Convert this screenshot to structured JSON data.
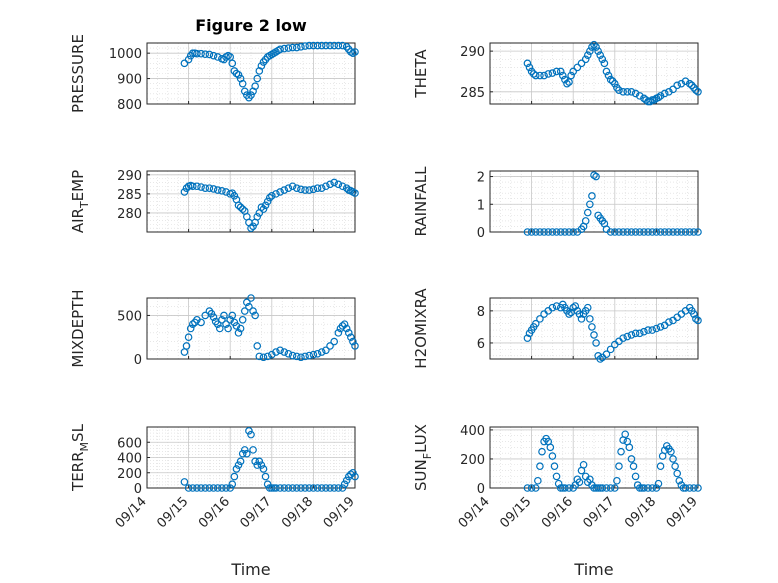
{
  "figure": {
    "title": "Figure 2 low",
    "xlabel": "Time",
    "marker_color": "#0072BD",
    "xlim": [
      "09/14",
      "09/19"
    ],
    "xtick_labels": [
      "09/14",
      "09/15",
      "09/16",
      "09/17",
      "09/18",
      "09/19"
    ]
  },
  "chart_data": [
    {
      "type": "scatter",
      "ylabel": "PRESSURE",
      "ylim": [
        800,
        1040
      ],
      "yticks": [
        800,
        900,
        1000
      ],
      "x_day": [
        14.9,
        15.0,
        15.05,
        15.1,
        15.15,
        15.2,
        15.3,
        15.4,
        15.5,
        15.6,
        15.7,
        15.8,
        15.85,
        15.9,
        15.95,
        16.0,
        16.05,
        16.1,
        16.15,
        16.2,
        16.25,
        16.3,
        16.35,
        16.4,
        16.45,
        16.5,
        16.55,
        16.6,
        16.65,
        16.7,
        16.75,
        16.8,
        16.85,
        16.9,
        16.95,
        17.0,
        17.05,
        17.1,
        17.15,
        17.2,
        17.3,
        17.4,
        17.5,
        17.6,
        17.7,
        17.8,
        17.9,
        18.0,
        18.1,
        18.2,
        18.3,
        18.4,
        18.5,
        18.6,
        18.7,
        18.8,
        18.85,
        18.9,
        18.95,
        19.0
      ],
      "y": [
        960,
        975,
        990,
        1000,
        1000,
        998,
        998,
        996,
        995,
        990,
        985,
        978,
        975,
        985,
        990,
        985,
        960,
        930,
        920,
        915,
        900,
        880,
        850,
        835,
        825,
        835,
        850,
        870,
        900,
        930,
        950,
        965,
        975,
        985,
        990,
        995,
        1000,
        1005,
        1010,
        1015,
        1018,
        1020,
        1022,
        1022,
        1025,
        1028,
        1030,
        1030,
        1030,
        1030,
        1030,
        1030,
        1030,
        1030,
        1030,
        1025,
        1015,
        1005,
        1000,
        1005
      ]
    },
    {
      "type": "scatter",
      "ylabel": "THETA",
      "ylim": [
        283.5,
        291
      ],
      "yticks": [
        285,
        290
      ],
      "x_day": [
        14.9,
        14.95,
        15.0,
        15.05,
        15.1,
        15.2,
        15.3,
        15.4,
        15.5,
        15.6,
        15.7,
        15.75,
        15.8,
        15.85,
        15.9,
        15.95,
        16.0,
        16.1,
        16.2,
        16.3,
        16.35,
        16.4,
        16.45,
        16.5,
        16.55,
        16.6,
        16.65,
        16.7,
        16.75,
        16.8,
        16.85,
        16.9,
        16.95,
        17.0,
        17.05,
        17.1,
        17.2,
        17.3,
        17.4,
        17.5,
        17.6,
        17.7,
        17.75,
        17.8,
        17.85,
        17.9,
        17.95,
        18.0,
        18.05,
        18.1,
        18.2,
        18.3,
        18.4,
        18.5,
        18.6,
        18.7,
        18.8,
        18.85,
        18.9,
        18.95,
        19.0
      ],
      "y": [
        288.5,
        288.0,
        287.5,
        287.2,
        287.0,
        287.0,
        287.0,
        287.2,
        287.3,
        287.5,
        287.5,
        287.0,
        286.5,
        286.0,
        286.2,
        287.0,
        287.5,
        288.0,
        288.5,
        289.0,
        289.5,
        290.0,
        290.5,
        290.8,
        290.5,
        290.0,
        289.5,
        289.0,
        288.5,
        287.5,
        287.0,
        286.5,
        286.3,
        286.0,
        285.5,
        285.2,
        285.0,
        285.0,
        285.0,
        284.8,
        284.5,
        284.2,
        284.0,
        283.8,
        283.8,
        284.0,
        284.0,
        284.2,
        284.3,
        284.5,
        284.8,
        285.0,
        285.3,
        285.8,
        286.0,
        286.3,
        286.0,
        285.8,
        285.5,
        285.2,
        285.0
      ]
    },
    {
      "type": "scatter",
      "ylabel": "AIR_TEMP",
      "ylim": [
        275,
        291
      ],
      "yticks": [
        280,
        285,
        290
      ],
      "x_day": [
        14.9,
        14.95,
        15.0,
        15.05,
        15.1,
        15.2,
        15.3,
        15.4,
        15.5,
        15.6,
        15.7,
        15.8,
        15.9,
        16.0,
        16.05,
        16.1,
        16.15,
        16.2,
        16.25,
        16.3,
        16.35,
        16.4,
        16.45,
        16.5,
        16.55,
        16.6,
        16.65,
        16.7,
        16.75,
        16.8,
        16.85,
        16.9,
        16.95,
        17.0,
        17.1,
        17.2,
        17.3,
        17.4,
        17.5,
        17.6,
        17.7,
        17.8,
        17.9,
        18.0,
        18.1,
        18.2,
        18.3,
        18.4,
        18.5,
        18.6,
        18.7,
        18.8,
        18.85,
        18.9,
        18.95,
        19.0
      ],
      "y": [
        285.5,
        286.5,
        287.0,
        287.2,
        287.0,
        287.0,
        286.8,
        286.5,
        286.5,
        286.3,
        286.0,
        285.8,
        285.5,
        285.0,
        285.2,
        284.5,
        283.5,
        282.0,
        281.5,
        281.0,
        280.5,
        279.0,
        277.5,
        276.0,
        276.5,
        277.5,
        279.0,
        280.0,
        281.5,
        281.0,
        282.0,
        283.0,
        284.0,
        284.5,
        285.0,
        285.5,
        286.0,
        286.5,
        287.0,
        286.5,
        286.2,
        286.0,
        286.0,
        286.2,
        286.5,
        286.5,
        287.0,
        287.5,
        288.0,
        287.5,
        287.0,
        286.5,
        286.0,
        285.8,
        285.5,
        285.2
      ]
    },
    {
      "type": "scatter",
      "ylabel": "RAINFALL",
      "ylim": [
        0,
        2.2
      ],
      "yticks": [
        0,
        1,
        2
      ],
      "x_day": [
        14.9,
        15.0,
        15.1,
        15.2,
        15.3,
        15.4,
        15.5,
        15.6,
        15.7,
        15.8,
        15.9,
        16.0,
        16.1,
        16.2,
        16.25,
        16.3,
        16.35,
        16.4,
        16.45,
        16.5,
        16.55,
        16.6,
        16.65,
        16.7,
        16.75,
        16.8,
        16.9,
        17.0,
        17.1,
        17.2,
        17.3,
        17.4,
        17.5,
        17.6,
        17.7,
        17.8,
        17.9,
        18.0,
        18.1,
        18.2,
        18.3,
        18.4,
        18.5,
        18.6,
        18.7,
        18.8,
        18.9,
        19.0
      ],
      "y": [
        0,
        0,
        0,
        0,
        0,
        0,
        0,
        0,
        0,
        0,
        0,
        0,
        0,
        0.1,
        0.2,
        0.4,
        0.7,
        1.0,
        1.3,
        2.05,
        2.0,
        0.6,
        0.5,
        0.4,
        0.3,
        0.1,
        0,
        0,
        0,
        0,
        0,
        0,
        0,
        0,
        0,
        0,
        0,
        0,
        0,
        0,
        0,
        0,
        0,
        0,
        0,
        0,
        0,
        0
      ]
    },
    {
      "type": "scatter",
      "ylabel": "MIXDEPTH",
      "ylim": [
        0,
        700
      ],
      "yticks": [
        0,
        500
      ],
      "x_day": [
        14.9,
        14.95,
        15.0,
        15.05,
        15.1,
        15.15,
        15.2,
        15.3,
        15.4,
        15.5,
        15.55,
        15.6,
        15.65,
        15.7,
        15.75,
        15.8,
        15.85,
        15.9,
        15.95,
        16.0,
        16.05,
        16.1,
        16.15,
        16.2,
        16.25,
        16.3,
        16.35,
        16.4,
        16.45,
        16.5,
        16.55,
        16.6,
        16.65,
        16.7,
        16.8,
        16.9,
        17.0,
        17.1,
        17.2,
        17.3,
        17.4,
        17.5,
        17.6,
        17.7,
        17.8,
        17.9,
        18.0,
        18.1,
        18.2,
        18.3,
        18.4,
        18.5,
        18.6,
        18.65,
        18.7,
        18.75,
        18.8,
        18.85,
        18.9,
        18.95,
        19.0
      ],
      "y": [
        80,
        150,
        250,
        350,
        400,
        420,
        450,
        420,
        500,
        550,
        520,
        480,
        430,
        400,
        350,
        450,
        500,
        400,
        350,
        450,
        500,
        420,
        380,
        300,
        350,
        450,
        550,
        650,
        600,
        700,
        550,
        500,
        150,
        30,
        20,
        30,
        50,
        80,
        100,
        80,
        60,
        40,
        30,
        20,
        30,
        40,
        50,
        60,
        80,
        100,
        150,
        200,
        300,
        350,
        380,
        400,
        350,
        300,
        250,
        200,
        150
      ]
    },
    {
      "type": "scatter",
      "ylabel": "H2OMIXRA",
      "ylim": [
        5,
        8.8
      ],
      "yticks": [
        6,
        8
      ],
      "x_day": [
        14.9,
        14.95,
        15.0,
        15.05,
        15.1,
        15.2,
        15.3,
        15.4,
        15.5,
        15.6,
        15.7,
        15.75,
        15.8,
        15.85,
        15.9,
        15.95,
        16.0,
        16.05,
        16.1,
        16.15,
        16.2,
        16.25,
        16.3,
        16.35,
        16.4,
        16.45,
        16.5,
        16.55,
        16.6,
        16.65,
        16.7,
        16.8,
        16.9,
        17.0,
        17.1,
        17.2,
        17.3,
        17.4,
        17.5,
        17.6,
        17.7,
        17.8,
        17.9,
        18.0,
        18.1,
        18.2,
        18.3,
        18.4,
        18.5,
        18.6,
        18.7,
        18.8,
        18.85,
        18.9,
        18.95,
        19.0
      ],
      "y": [
        6.3,
        6.6,
        6.8,
        7.0,
        7.2,
        7.5,
        7.8,
        8.0,
        8.2,
        8.3,
        8.2,
        8.4,
        8.2,
        8.0,
        7.8,
        7.9,
        8.2,
        8.3,
        8.0,
        7.8,
        7.5,
        7.8,
        8.0,
        8.2,
        7.5,
        7.0,
        6.5,
        6.0,
        5.2,
        5.0,
        5.1,
        5.3,
        5.6,
        5.9,
        6.1,
        6.3,
        6.4,
        6.5,
        6.6,
        6.6,
        6.7,
        6.8,
        6.8,
        6.9,
        7.0,
        7.1,
        7.3,
        7.4,
        7.6,
        7.8,
        8.0,
        8.2,
        8.0,
        7.8,
        7.5,
        7.4
      ]
    },
    {
      "type": "scatter",
      "ylabel": "TERR_MSL",
      "ylim": [
        0,
        800
      ],
      "yticks": [
        0,
        200,
        400,
        600
      ],
      "x_day": [
        14.9,
        15.0,
        15.1,
        15.2,
        15.3,
        15.4,
        15.5,
        15.6,
        15.7,
        15.8,
        15.9,
        16.0,
        16.05,
        16.1,
        16.15,
        16.2,
        16.25,
        16.3,
        16.35,
        16.4,
        16.45,
        16.5,
        16.55,
        16.6,
        16.65,
        16.7,
        16.75,
        16.8,
        16.85,
        16.9,
        16.95,
        17.0,
        17.05,
        17.1,
        17.2,
        17.3,
        17.4,
        17.5,
        17.6,
        17.7,
        17.8,
        17.9,
        18.0,
        18.1,
        18.2,
        18.3,
        18.4,
        18.5,
        18.6,
        18.7,
        18.75,
        18.8,
        18.85,
        18.9,
        18.95,
        19.0
      ],
      "y": [
        80,
        0,
        0,
        0,
        0,
        0,
        0,
        0,
        0,
        0,
        0,
        0,
        50,
        150,
        250,
        300,
        350,
        450,
        500,
        450,
        750,
        700,
        500,
        350,
        300,
        350,
        300,
        250,
        150,
        50,
        0,
        0,
        0,
        0,
        0,
        0,
        0,
        0,
        0,
        0,
        0,
        0,
        0,
        0,
        0,
        0,
        0,
        0,
        0,
        0,
        50,
        100,
        150,
        180,
        200,
        150
      ]
    },
    {
      "type": "scatter",
      "ylabel": "SUN_FLUX",
      "ylim": [
        0,
        420
      ],
      "yticks": [
        0,
        200,
        400
      ],
      "x_day": [
        14.9,
        15.0,
        15.1,
        15.15,
        15.2,
        15.25,
        15.3,
        15.35,
        15.4,
        15.45,
        15.5,
        15.55,
        15.6,
        15.65,
        15.7,
        15.75,
        15.8,
        15.9,
        16.0,
        16.05,
        16.1,
        16.15,
        16.2,
        16.25,
        16.3,
        16.35,
        16.4,
        16.45,
        16.5,
        16.55,
        16.6,
        16.65,
        16.7,
        16.8,
        16.9,
        17.0,
        17.05,
        17.1,
        17.15,
        17.2,
        17.25,
        17.3,
        17.35,
        17.4,
        17.45,
        17.5,
        17.55,
        17.6,
        17.65,
        17.7,
        17.8,
        17.9,
        18.0,
        18.05,
        18.1,
        18.15,
        18.2,
        18.25,
        18.3,
        18.35,
        18.4,
        18.45,
        18.5,
        18.55,
        18.6,
        18.65,
        18.7,
        18.8,
        18.9,
        19.0
      ],
      "y": [
        0,
        0,
        0,
        50,
        150,
        250,
        320,
        340,
        320,
        280,
        220,
        150,
        80,
        30,
        0,
        0,
        0,
        0,
        0,
        20,
        60,
        40,
        120,
        160,
        80,
        40,
        60,
        20,
        0,
        0,
        0,
        0,
        0,
        0,
        0,
        0,
        50,
        150,
        250,
        330,
        370,
        320,
        280,
        200,
        150,
        80,
        20,
        0,
        0,
        0,
        0,
        0,
        0,
        30,
        150,
        220,
        260,
        290,
        270,
        250,
        200,
        150,
        100,
        50,
        20,
        0,
        0,
        0,
        0,
        0
      ]
    }
  ]
}
